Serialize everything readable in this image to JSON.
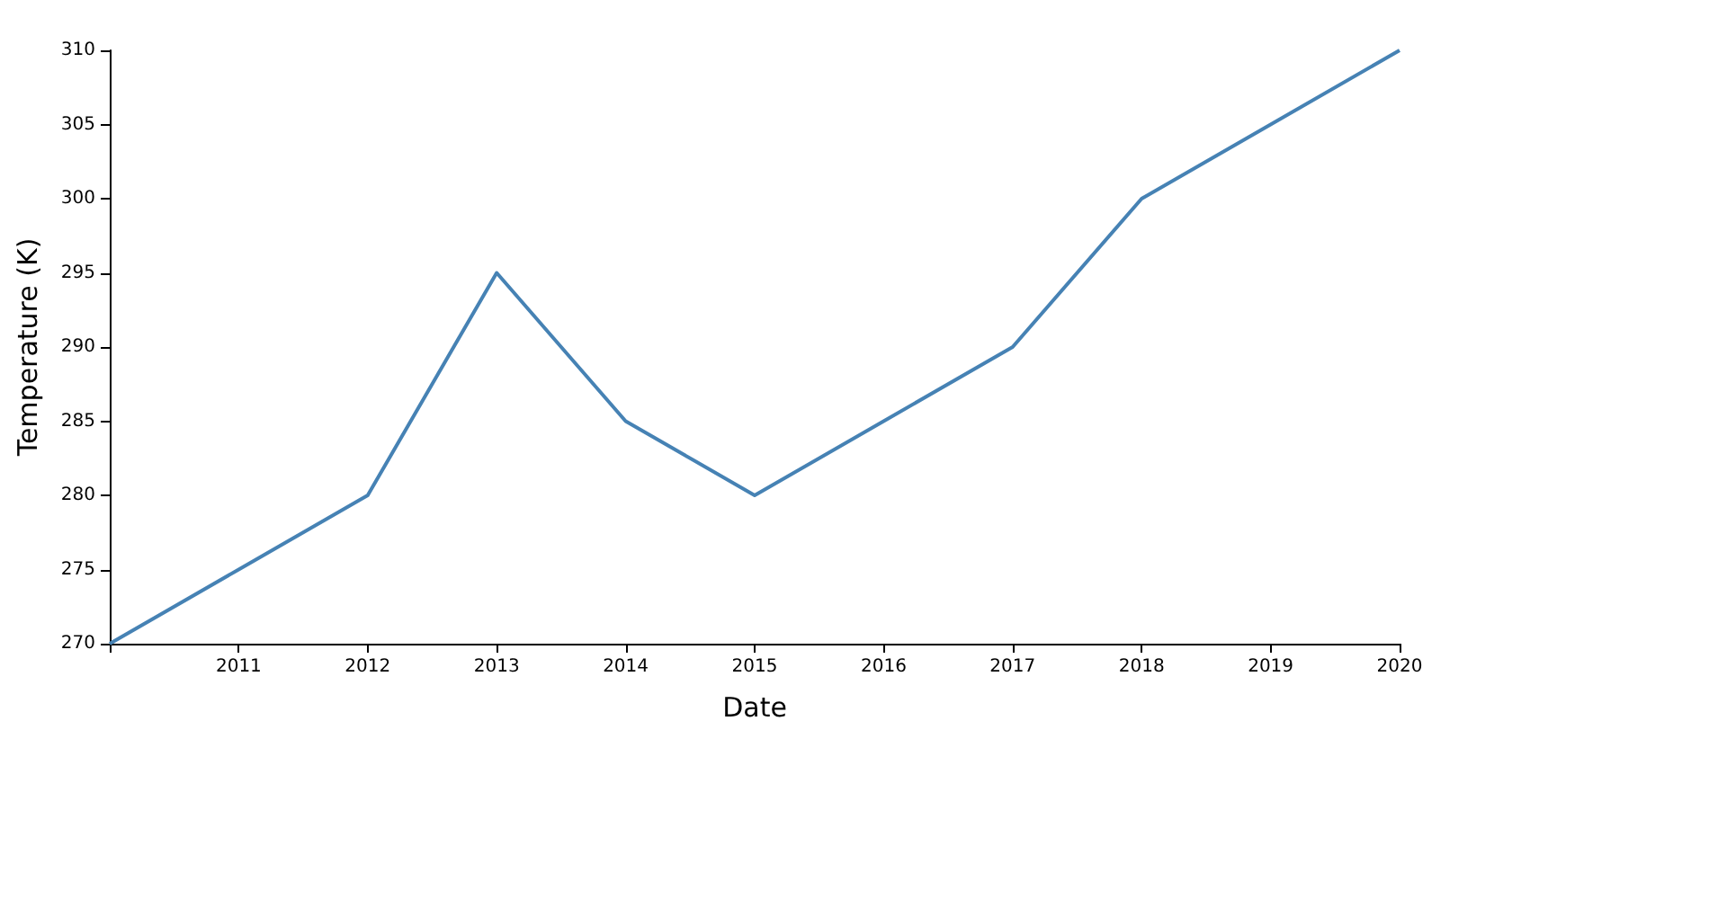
{
  "chart_data": {
    "type": "line",
    "xlabel": "Date",
    "ylabel": "Temperature (K)",
    "x": [
      2010,
      2011,
      2012,
      2013,
      2014,
      2015,
      2016,
      2017,
      2018,
      2019,
      2020
    ],
    "series": [
      {
        "color": "#4682b4",
        "values": [
          270,
          275,
          280,
          295,
          285,
          280,
          285,
          290,
          300,
          305,
          310
        ]
      }
    ],
    "xlim": [
      2010,
      2020
    ],
    "xticks": [
      {
        "value": 2010,
        "label": null
      },
      2011,
      2012,
      2013,
      2014,
      2015,
      2016,
      2017,
      2018,
      2019,
      2020
    ],
    "ylim": [
      270,
      310
    ],
    "yticks": [
      270,
      275,
      280,
      285,
      290,
      295,
      300,
      305,
      310
    ],
    "line_style": "solid"
  }
}
